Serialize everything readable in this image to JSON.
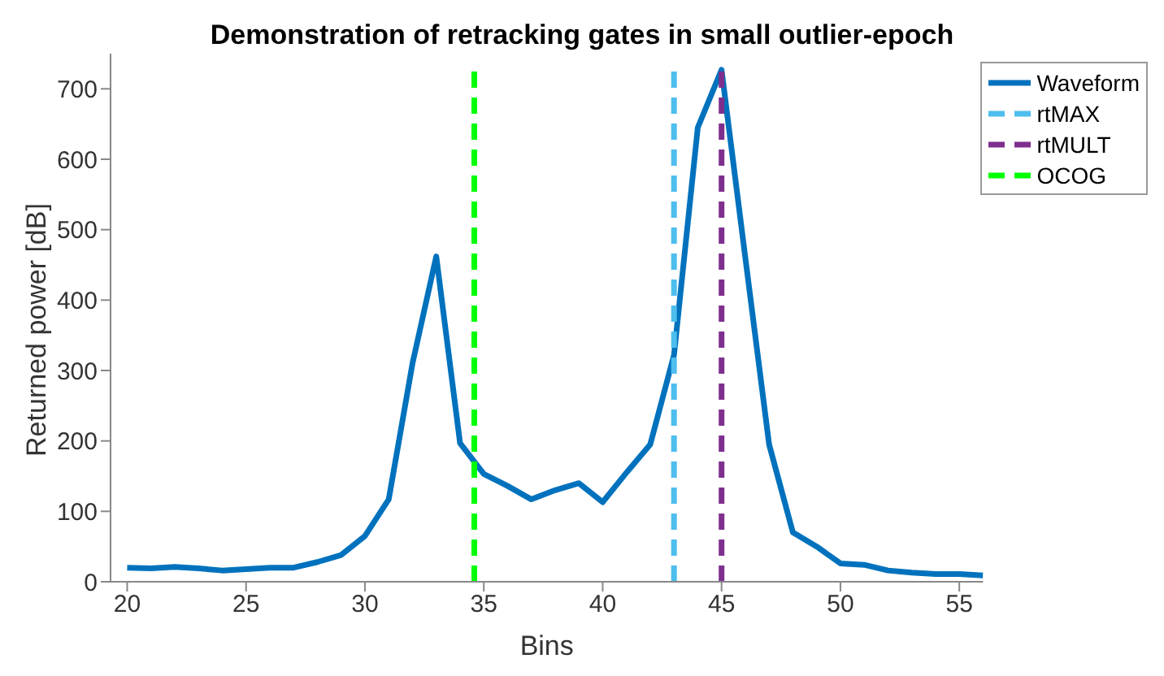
{
  "chart_data": {
    "type": "line",
    "title": "Demonstration of retracking gates in small outlier-epoch",
    "xlabel": "Bins",
    "ylabel": "Returned power [dB]",
    "x": [
      20,
      21,
      22,
      23,
      24,
      25,
      26,
      27,
      28,
      29,
      30,
      31,
      32,
      33,
      34,
      35,
      36,
      37,
      38,
      39,
      40,
      41,
      42,
      43,
      44,
      45,
      46,
      47,
      48,
      49,
      50,
      51,
      52,
      53,
      54,
      55,
      56
    ],
    "series": [
      {
        "name": "Waveform",
        "color": "#0072bd",
        "line_style": "solid",
        "values": [
          20,
          19,
          21,
          19,
          16,
          18,
          20,
          20,
          28,
          38,
          65,
          117,
          310,
          462,
          197,
          153,
          136,
          117,
          130,
          140,
          113,
          155,
          195,
          322,
          645,
          727,
          460,
          195,
          70,
          50,
          26,
          24,
          16,
          13,
          11,
          11,
          9
        ]
      },
      {
        "name": "rtMAX",
        "color": "#4dbeee",
        "line_style": "dashed",
        "x": [
          43,
          43
        ],
        "values": [
          0,
          730
        ]
      },
      {
        "name": "rtMULT",
        "color": "#7e2f8e",
        "line_style": "dashed",
        "x": [
          45,
          45
        ],
        "values": [
          0,
          730
        ]
      },
      {
        "name": "OCOG",
        "color": "#00ff00",
        "line_style": "dashed",
        "x": [
          34.6,
          34.6
        ],
        "values": [
          0,
          730
        ]
      }
    ],
    "xlim": [
      19.3,
      56
    ],
    "xticks": [
      20,
      25,
      30,
      35,
      40,
      45,
      50,
      55
    ],
    "ylim": [
      0,
      750
    ],
    "yticks": [
      0,
      100,
      200,
      300,
      400,
      500,
      600,
      700
    ],
    "legend": "top right",
    "marker": "none"
  }
}
